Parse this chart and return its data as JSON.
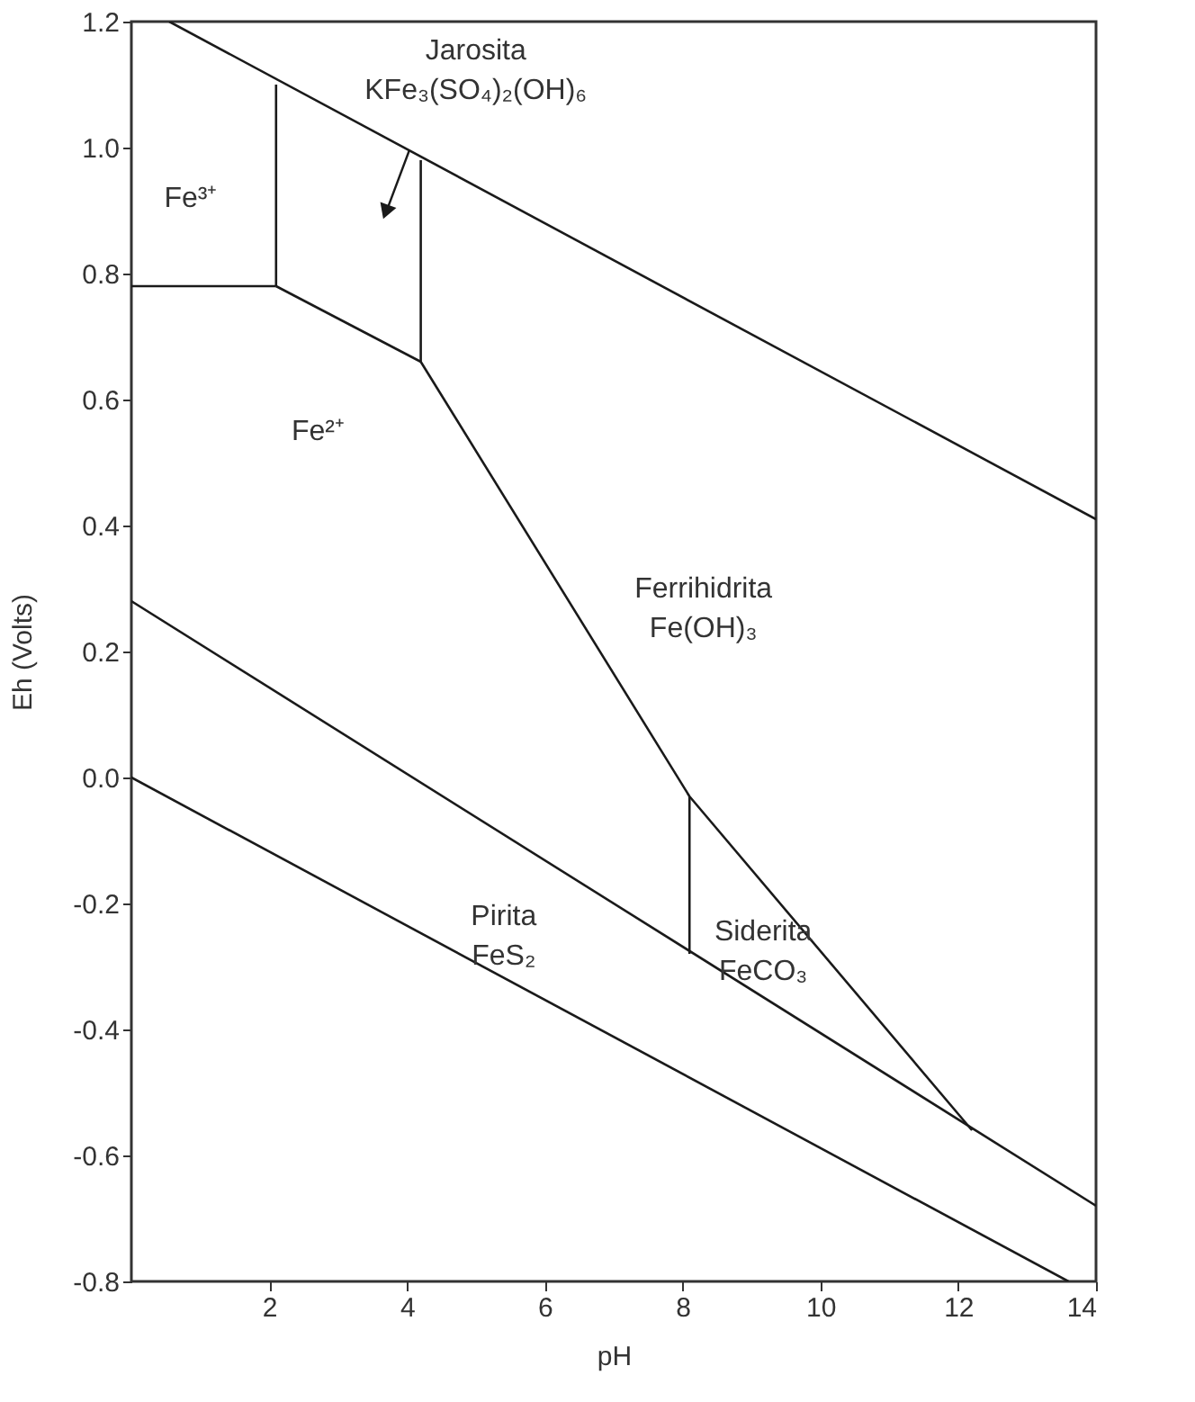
{
  "chart_data": {
    "type": "line",
    "xlabel": "pH",
    "ylabel": "Eh (Volts)",
    "xlim": [
      0,
      14
    ],
    "xticks": [
      2,
      4,
      6,
      8,
      10,
      12,
      14
    ],
    "ylim": [
      -0.8,
      1.2
    ],
    "yticks": [
      {
        "value": -0.8,
        "label": "-0.8"
      },
      {
        "value": -0.6,
        "label": "-0.6"
      },
      {
        "value": -0.4,
        "label": "-0.4"
      },
      {
        "value": -0.2,
        "label": "-0.2"
      },
      {
        "value": 0.0,
        "label": "0.0"
      },
      {
        "value": 0.2,
        "label": "0.2"
      },
      {
        "value": 0.4,
        "label": "0.4"
      },
      {
        "value": 0.6,
        "label": "0.6"
      },
      {
        "value": 0.8,
        "label": "0.8"
      },
      {
        "value": 1.0,
        "label": "1.0"
      },
      {
        "value": 1.2,
        "label": "1.2"
      }
    ],
    "grid": false,
    "marker": "none",
    "line_style": "solid",
    "series": [
      {
        "color": "#1a1a1a",
        "x": [
          0.55,
          14
        ],
        "values": [
          1.2,
          0.41
        ]
      },
      {
        "color": "#1a1a1a",
        "x": [
          0,
          13.6
        ],
        "values": [
          0.0,
          -0.8
        ]
      },
      {
        "color": "#1a1a1a",
        "x": [
          0,
          14
        ],
        "values": [
          0.28,
          -0.68
        ]
      },
      {
        "color": "#1a1a1a",
        "x": [
          0,
          2.1
        ],
        "values": [
          0.78,
          0.78
        ]
      },
      {
        "color": "#1a1a1a",
        "x": [
          2.1,
          2.1
        ],
        "values": [
          0.78,
          1.1
        ]
      },
      {
        "color": "#1a1a1a",
        "x": [
          2.1,
          4.2
        ],
        "values": [
          0.78,
          0.66
        ]
      },
      {
        "color": "#1a1a1a",
        "x": [
          4.2,
          4.2
        ],
        "values": [
          0.66,
          0.98
        ]
      },
      {
        "color": "#1a1a1a",
        "x": [
          4.2,
          8.1,
          12.2
        ],
        "values": [
          0.66,
          -0.03,
          -0.56
        ]
      },
      {
        "color": "#1a1a1a",
        "x": [
          8.1,
          8.1
        ],
        "values": [
          -0.03,
          -0.28
        ]
      }
    ],
    "annotations": [
      "Jarosita\nKFe₃(SO₄)₂(OH)₆",
      "Fe³⁺",
      "Fe²⁺",
      "Ferrihidrita\nFe(OH)₃",
      "Pirita\nFeS₂",
      "Siderita\nFeCO₃"
    ]
  }
}
